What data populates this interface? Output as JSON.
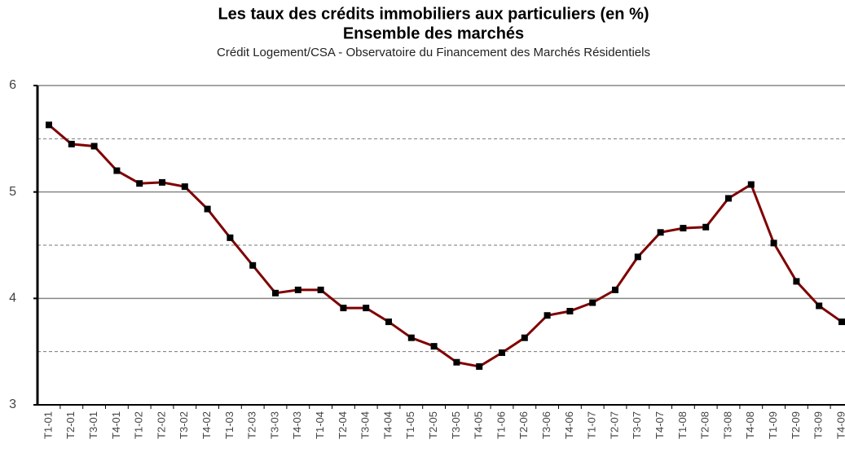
{
  "chart_data": {
    "type": "line",
    "title_lines": [
      "Les taux des crédits immobiliers aux particuliers (en %)",
      "Ensemble des marchés"
    ],
    "subtitle": "Crédit Logement/CSA - Observatoire du Financement des Marchés Résidentiels",
    "categories": [
      "T1-01",
      "T2-01",
      "T3-01",
      "T4-01",
      "T1-02",
      "T2-02",
      "T3-02",
      "T4-02",
      "T1-03",
      "T2-03",
      "T3-03",
      "T4-03",
      "T1-04",
      "T2-04",
      "T3-04",
      "T4-04",
      "T1-05",
      "T2-05",
      "T3-05",
      "T4-05",
      "T1-06",
      "T2-06",
      "T3-06",
      "T4-06",
      "T1-07",
      "T2-07",
      "T3-07",
      "T4-07",
      "T1-08",
      "T2-08",
      "T3-08",
      "T4-08",
      "T1-09",
      "T2-09",
      "T3-09",
      "T4-09"
    ],
    "series": [
      {
        "color": "#800000",
        "marker_color": "#000000",
        "values": [
          5.63,
          5.45,
          5.43,
          5.2,
          5.08,
          5.09,
          5.05,
          4.84,
          4.57,
          4.31,
          4.05,
          4.08,
          4.08,
          3.91,
          3.91,
          3.78,
          3.63,
          3.55,
          3.4,
          3.36,
          3.49,
          3.63,
          3.84,
          3.88,
          3.96,
          4.08,
          4.39,
          4.62,
          4.66,
          4.67,
          4.94,
          5.07,
          4.52,
          4.16,
          3.93,
          3.78
        ]
      }
    ],
    "ylim": [
      3,
      6
    ],
    "yticks": [
      3,
      4,
      5,
      6
    ],
    "minor_yticks": [
      3.5,
      4.5,
      5.5
    ],
    "grid": true
  }
}
